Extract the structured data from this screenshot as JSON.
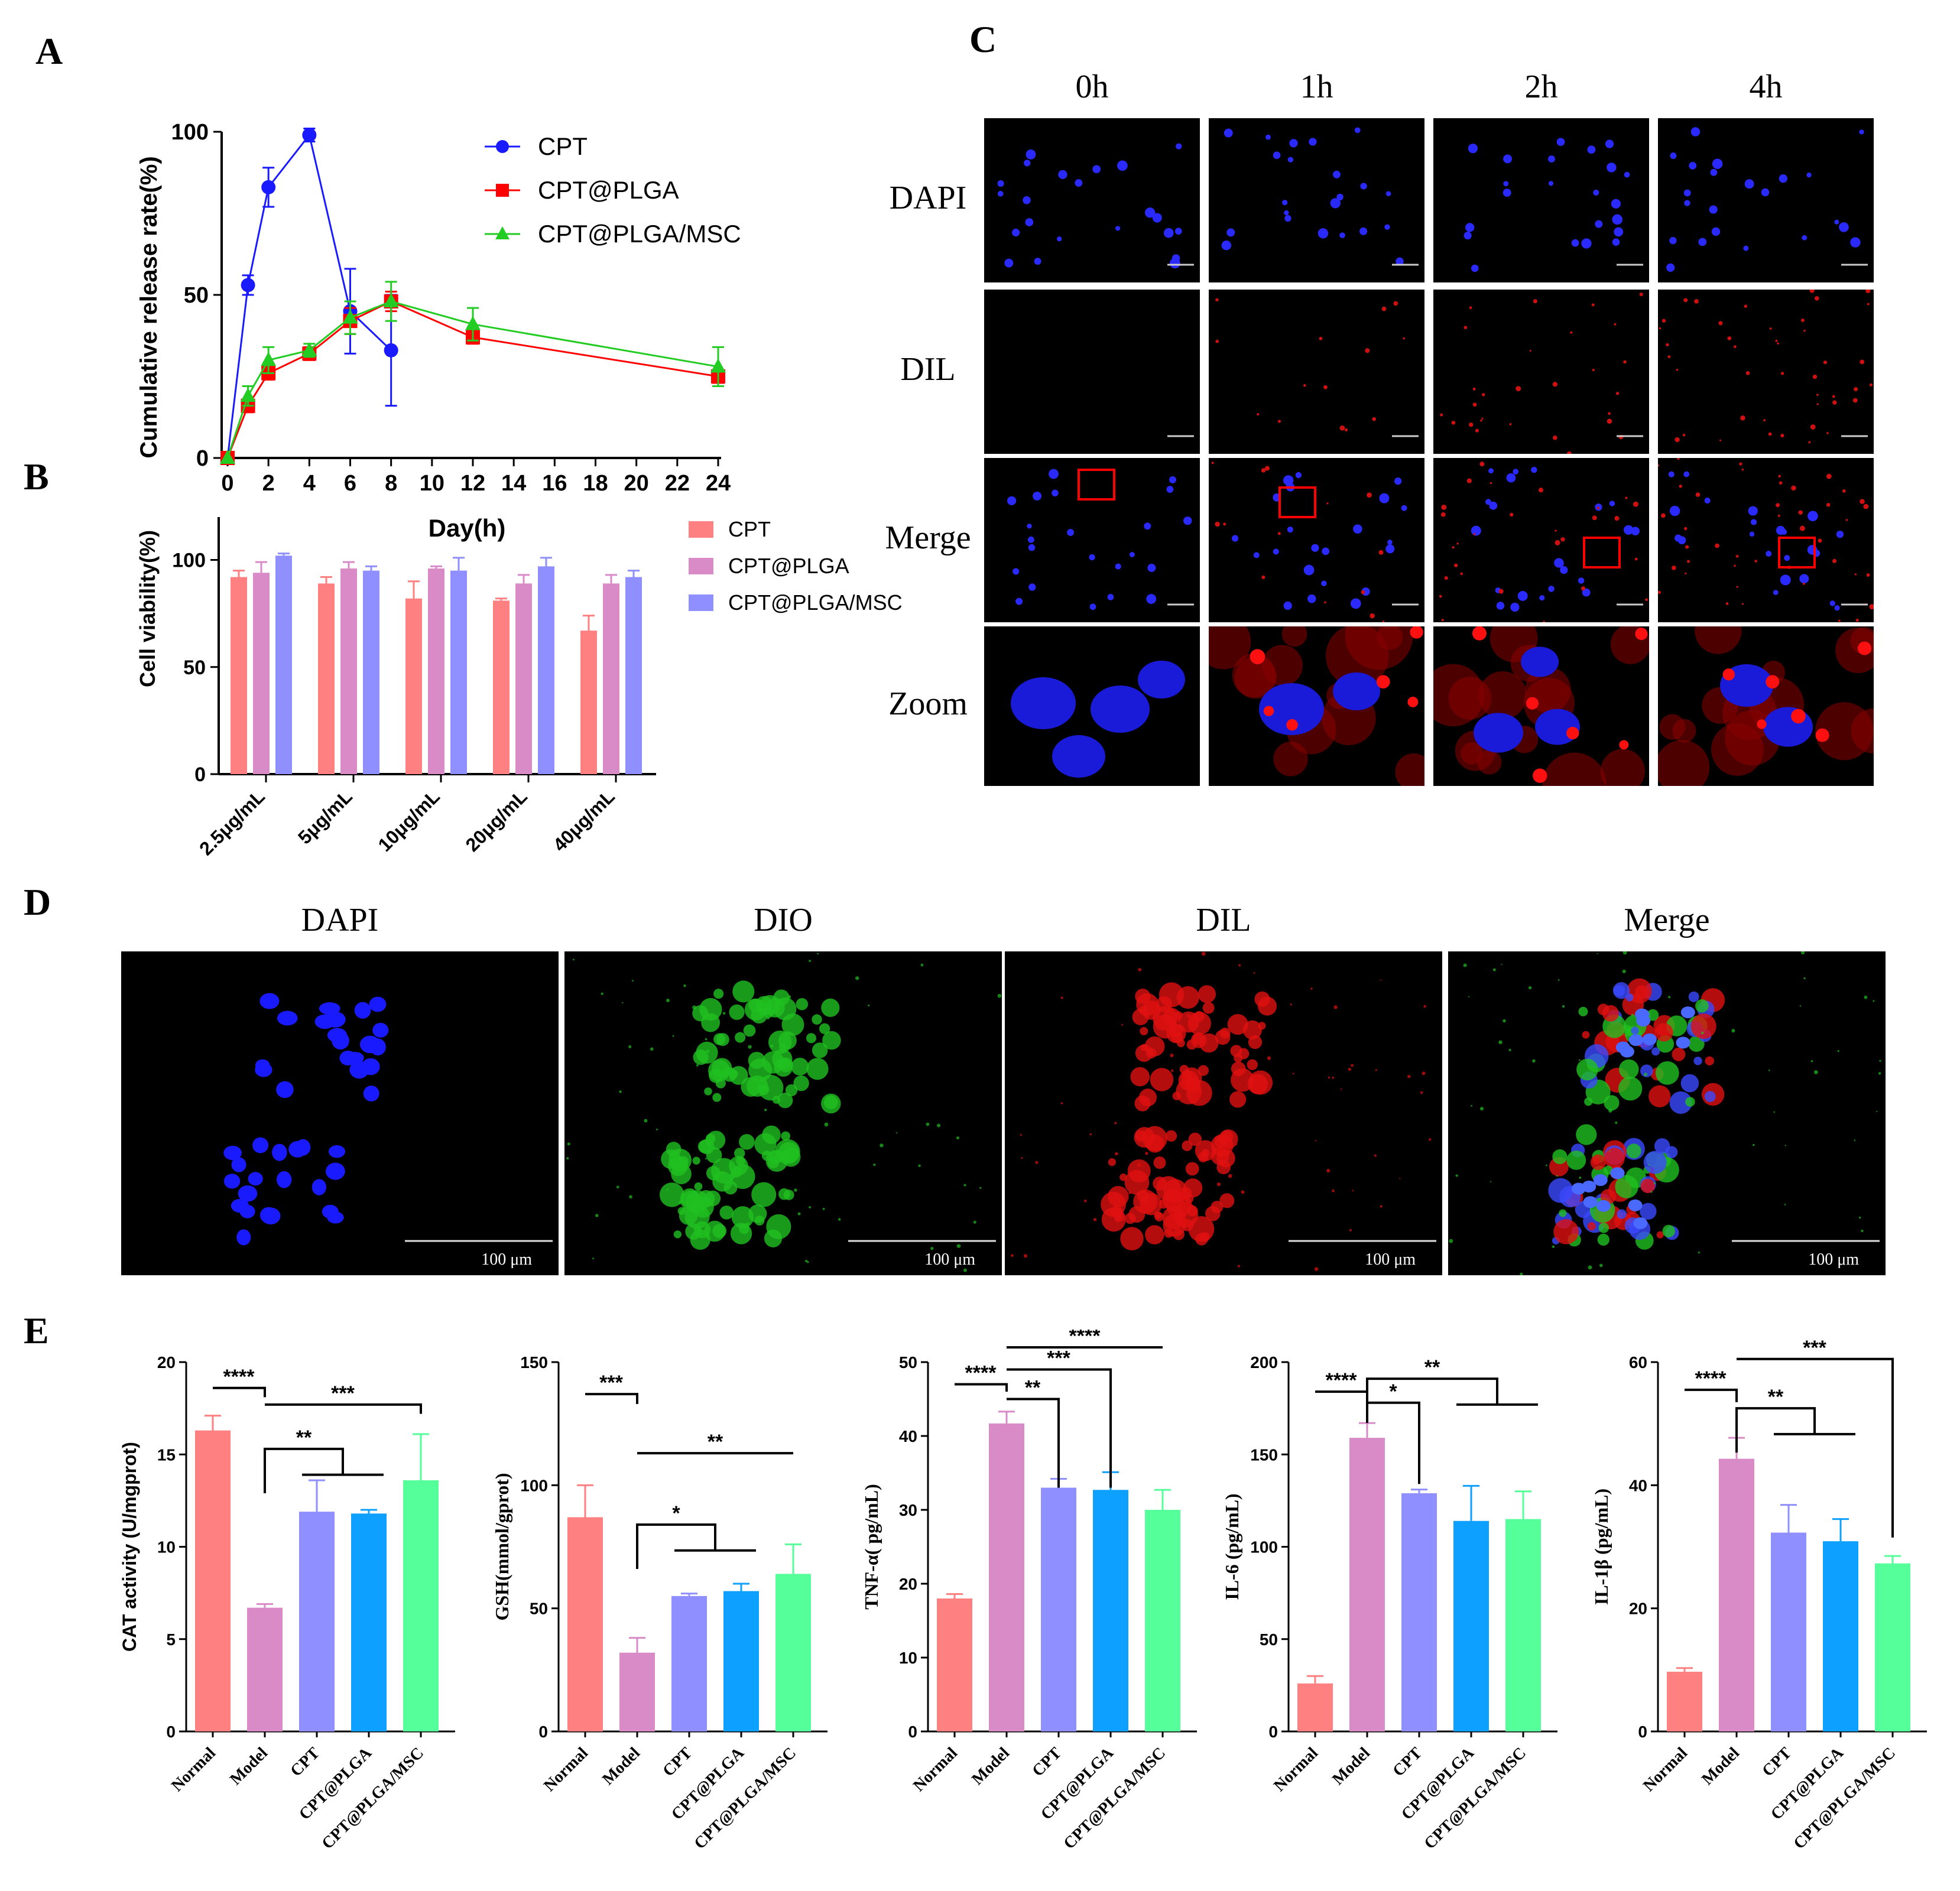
{
  "panels": {
    "a": "A",
    "b": "B",
    "c": "C",
    "d": "D",
    "e": "E"
  },
  "colors": {
    "blue": "#1a1aff",
    "red": "#ff0000",
    "green": "#22cc22",
    "salmon": "#ff8080",
    "orchid": "#d98bc7",
    "lavender": "#8f8fff",
    "sky": "#0da0ff",
    "mint": "#55ff99"
  },
  "chart_data": [
    {
      "id": "A",
      "type": "line",
      "xlabel": "Day(h)",
      "ylabel": "Cumulative release rate(%)",
      "xlim": [
        0,
        24
      ],
      "ylim": [
        0,
        100
      ],
      "xticks": [
        "0",
        "2",
        "4",
        "6",
        "8",
        "10",
        "12",
        "14",
        "16",
        "18",
        "20",
        "22",
        "24"
      ],
      "yticks": [
        "0",
        "50",
        "100"
      ],
      "legend_position": "top-right",
      "series": [
        {
          "name": "CPT",
          "marker": "circle",
          "color": "#1a1aff",
          "x": [
            0,
            1,
            2,
            4,
            6,
            8
          ],
          "y": [
            0,
            53,
            83,
            99,
            45,
            33
          ],
          "err": [
            0,
            3,
            6,
            2,
            13,
            17
          ]
        },
        {
          "name": "CPT@PLGA",
          "marker": "square",
          "color": "#ff0000",
          "x": [
            0,
            1,
            2,
            4,
            6,
            8,
            12,
            24
          ],
          "y": [
            0,
            16,
            26,
            32,
            42,
            48,
            37,
            25
          ],
          "err": [
            0,
            2,
            2,
            2,
            4,
            3,
            2,
            2
          ]
        },
        {
          "name": "CPT@PLGA/MSC",
          "marker": "triangle",
          "color": "#22cc22",
          "x": [
            0,
            1,
            2,
            4,
            6,
            8,
            12,
            24
          ],
          "y": [
            0,
            19,
            30,
            33,
            43,
            48,
            41,
            28
          ],
          "err": [
            0,
            3,
            4,
            2,
            5,
            6,
            5,
            6
          ]
        }
      ]
    },
    {
      "id": "B",
      "type": "bar",
      "ylabel": "Cell viability(%)",
      "ylim": [
        0,
        120
      ],
      "yticks": [
        "0",
        "50",
        "100"
      ],
      "categories": [
        "2.5μg/mL",
        "5μg/mL",
        "10μg/mL",
        "20μg/mL",
        "40μg/mL"
      ],
      "legend_position": "right",
      "series": [
        {
          "name": "CPT",
          "color": "#ff8080",
          "values": [
            92,
            89,
            82,
            81,
            67
          ],
          "err": [
            3,
            3,
            8,
            1,
            7
          ]
        },
        {
          "name": "CPT@PLGA",
          "color": "#d98bc7",
          "values": [
            94,
            96,
            96,
            89,
            89
          ],
          "err": [
            5,
            3,
            1,
            4,
            4
          ]
        },
        {
          "name": "CPT@PLGA/MSC",
          "color": "#8f8fff",
          "values": [
            102,
            95,
            95,
            97,
            92
          ],
          "err": [
            1,
            2,
            6,
            4,
            3
          ]
        }
      ]
    },
    {
      "id": "E1",
      "type": "bar",
      "ylabel": "CAT activity (U/mgprot)",
      "ylim": [
        0,
        20
      ],
      "yticks": [
        "0",
        "5",
        "10",
        "15",
        "20"
      ],
      "categories": [
        "Normal",
        "Model",
        "CPT",
        "CPT@PLGA",
        "CPT@PLGA/MSC"
      ],
      "values": [
        16.3,
        6.7,
        11.9,
        11.8,
        13.6
      ],
      "err": [
        0.8,
        0.2,
        1.7,
        0.2,
        2.5
      ],
      "significance": [
        "****",
        "**",
        "***"
      ]
    },
    {
      "id": "E2",
      "type": "bar",
      "ylabel": "GSH(mmol/gprot)",
      "ylim": [
        0,
        150
      ],
      "yticks": [
        "0",
        "50",
        "100",
        "150"
      ],
      "categories": [
        "Normal",
        "Model",
        "CPT",
        "CPT@PLGA",
        "CPT@PLGA/MSC"
      ],
      "values": [
        87,
        32,
        55,
        57,
        64
      ],
      "err": [
        13,
        6,
        1,
        3,
        12
      ],
      "significance": [
        "***",
        "*",
        "**"
      ]
    },
    {
      "id": "E3",
      "type": "bar",
      "ylabel": "TNF-α( pg/mL)",
      "ylim": [
        0,
        50
      ],
      "yticks": [
        "0",
        "10",
        "20",
        "30",
        "40",
        "50"
      ],
      "categories": [
        "Normal",
        "Model",
        "CPT",
        "CPT@PLGA",
        "CPT@PLGA/MSC"
      ],
      "values": [
        18,
        41.7,
        33,
        32.7,
        30
      ],
      "err": [
        0.6,
        1.6,
        1.2,
        2.4,
        2.7
      ],
      "significance": [
        "****",
        "**",
        "***",
        "****"
      ]
    },
    {
      "id": "E4",
      "type": "bar",
      "ylabel": "IL-6 (pg/mL)",
      "ylim": [
        0,
        200
      ],
      "yticks": [
        "0",
        "50",
        "100",
        "150",
        "200"
      ],
      "categories": [
        "Normal",
        "Model",
        "CPT",
        "CPT@PLGA",
        "CPT@PLGA/MSC"
      ],
      "values": [
        26,
        159,
        129,
        114,
        115
      ],
      "err": [
        4,
        8,
        2,
        19,
        15
      ],
      "significance": [
        "****",
        "*",
        "**"
      ]
    },
    {
      "id": "E5",
      "type": "bar",
      "ylabel": "IL-1β (pg/mL)",
      "ylim": [
        0,
        60
      ],
      "yticks": [
        "0",
        "20",
        "40",
        "60"
      ],
      "categories": [
        "Normal",
        "Model",
        "CPT",
        "CPT@PLGA",
        "CPT@PLGA/MSC"
      ],
      "values": [
        9.7,
        44.3,
        32.3,
        30.9,
        27.3
      ],
      "err": [
        0.6,
        3.4,
        4.5,
        3.6,
        1.2
      ],
      "significance": [
        "****",
        "**",
        "***"
      ]
    }
  ],
  "panelC": {
    "columns": [
      "0h",
      "1h",
      "2h",
      "4h"
    ],
    "rows": [
      "DAPI",
      "DIL",
      "Merge",
      "Zoom"
    ]
  },
  "panelD": {
    "columns": [
      "DAPI",
      "DIO",
      "DIL",
      "Merge"
    ],
    "scalebar": "100 μm"
  }
}
